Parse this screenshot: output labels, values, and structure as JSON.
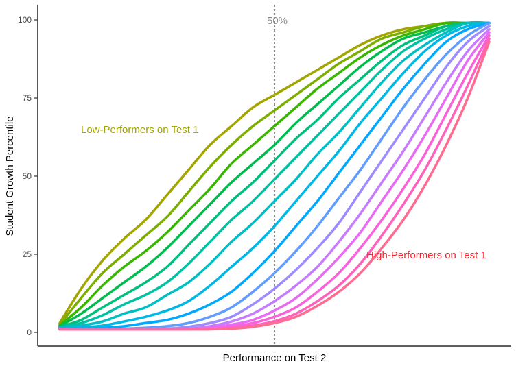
{
  "chart_data": {
    "type": "line",
    "title": "",
    "xlabel": "Performance on Test 2",
    "ylabel": "Student Growth Percentile",
    "xlim": [
      0,
      100
    ],
    "ylim": [
      0,
      100
    ],
    "yticks": [
      0,
      25,
      50,
      75,
      100
    ],
    "ytick_labels": [
      "0",
      "25",
      "50",
      "75",
      "100"
    ],
    "grid": false,
    "legend": "none",
    "reference_line": {
      "x": 50,
      "label": "50%",
      "style": "dotted",
      "color": "#8c8c8c"
    },
    "annotations": [
      {
        "text": "Low-Performers on Test 1",
        "color": "#a3a500",
        "x": 21,
        "y": 65
      },
      {
        "text": "High-Performers on Test 1",
        "color": "#f8212e",
        "x": 91,
        "y": 25
      }
    ],
    "x": [
      0,
      5,
      10,
      15,
      20,
      25,
      30,
      35,
      40,
      45,
      50,
      55,
      60,
      65,
      70,
      75,
      80,
      85,
      90,
      95,
      100
    ],
    "series": [
      {
        "color": "#a3a500",
        "values": [
          3,
          14,
          23,
          30,
          36,
          44,
          52,
          60,
          66,
          72,
          76,
          80,
          84,
          88,
          92,
          95,
          97,
          98,
          99,
          99,
          99
        ]
      },
      {
        "color": "#7cae00",
        "values": [
          2.5,
          11,
          19,
          25,
          31,
          37,
          45,
          53,
          60,
          66,
          71,
          76,
          81,
          86,
          90,
          94,
          96,
          98,
          99,
          99,
          99
        ]
      },
      {
        "color": "#39b600",
        "values": [
          2.2,
          8,
          15,
          21,
          26,
          32,
          39,
          46,
          54,
          60,
          66,
          72,
          78,
          83,
          88,
          92,
          95,
          97,
          99,
          99,
          99
        ]
      },
      {
        "color": "#00bb4e",
        "values": [
          2,
          6,
          11,
          16,
          21,
          27,
          34,
          41,
          48,
          54,
          60,
          67,
          73,
          79,
          85,
          90,
          94,
          96,
          98,
          99,
          99
        ]
      },
      {
        "color": "#00bf7d",
        "values": [
          1.8,
          4,
          8,
          12,
          16,
          21,
          28,
          35,
          42,
          48,
          55,
          62,
          68,
          75,
          81,
          87,
          92,
          95,
          98,
          99,
          99
        ]
      },
      {
        "color": "#00c1a3",
        "values": [
          1.6,
          3,
          5.5,
          9,
          12,
          16,
          22,
          29,
          36,
          42,
          49,
          56,
          63,
          70,
          77,
          84,
          90,
          94,
          97,
          99,
          99
        ]
      },
      {
        "color": "#00bfc4",
        "values": [
          1.5,
          2.2,
          3.5,
          6,
          8,
          12,
          16,
          22,
          29,
          35,
          42,
          49,
          57,
          64,
          72,
          80,
          87,
          92,
          96,
          99,
          99
        ]
      },
      {
        "color": "#00b8e5",
        "values": [
          1.4,
          1.6,
          2.2,
          3.5,
          5,
          7,
          10,
          15,
          21,
          27,
          34,
          42,
          50,
          58,
          67,
          75,
          83,
          90,
          95,
          98,
          99
        ]
      },
      {
        "color": "#00a9ff",
        "values": [
          1.3,
          1.2,
          1.5,
          2,
          3,
          4,
          6,
          9,
          13,
          19,
          26,
          34,
          42,
          51,
          60,
          69,
          78,
          86,
          93,
          97,
          99
        ]
      },
      {
        "color": "#619cff",
        "values": [
          1.2,
          1,
          1,
          1.2,
          1.5,
          2,
          3,
          5,
          8,
          13,
          19,
          26,
          34,
          43,
          52,
          62,
          72,
          81,
          89,
          95,
          99
        ]
      },
      {
        "color": "#9c8cff",
        "values": [
          1.1,
          1,
          1,
          1,
          1,
          1.2,
          1.8,
          3,
          5,
          9,
          14,
          20,
          27,
          35,
          45,
          55,
          65,
          75,
          85,
          93,
          98
        ]
      },
      {
        "color": "#c77cff",
        "values": [
          1.1,
          1,
          1,
          1,
          1,
          1,
          1.2,
          2,
          3.5,
          6,
          10,
          15,
          21,
          29,
          38,
          48,
          58,
          69,
          80,
          90,
          97
        ]
      },
      {
        "color": "#e76bf3",
        "values": [
          1,
          1,
          1,
          1,
          1,
          1,
          1,
          1.5,
          2.5,
          4,
          7,
          11,
          17,
          24,
          32,
          42,
          52,
          63,
          75,
          87,
          96
        ]
      },
      {
        "color": "#fa62db",
        "values": [
          1,
          1,
          1,
          1,
          1,
          1,
          1,
          1.2,
          1.8,
          3,
          5,
          8,
          13,
          19,
          27,
          36,
          46,
          57,
          70,
          83,
          95
        ]
      },
      {
        "color": "#ff62bc",
        "values": [
          1,
          1,
          1,
          1,
          1,
          1,
          1,
          1,
          1.4,
          2.2,
          3.6,
          6,
          10,
          15,
          22,
          31,
          41,
          52,
          65,
          79,
          94
        ]
      },
      {
        "color": "#ff6c91",
        "values": [
          1,
          1,
          1,
          1,
          1,
          1,
          1,
          1,
          1.2,
          1.8,
          3,
          5,
          8.5,
          13,
          19,
          27,
          36,
          47,
          60,
          75,
          93
        ]
      }
    ]
  }
}
